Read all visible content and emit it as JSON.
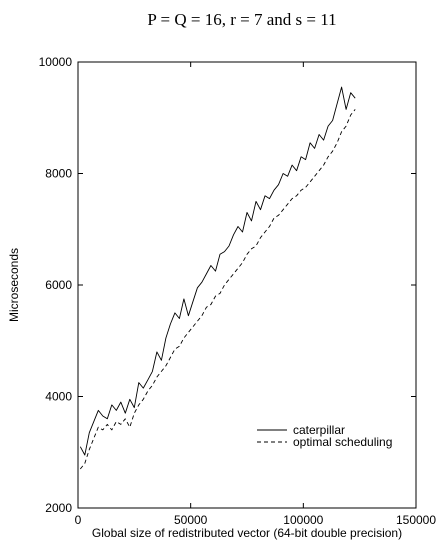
{
  "chart_data": {
    "type": "line",
    "title": "P = Q = 16, r = 7 and s = 11",
    "xlabel": "Global size of redistributed vector (64-bit double precision)",
    "ylabel": "Microseconds",
    "xlim": [
      0,
      150000
    ],
    "ylim": [
      2000,
      10000
    ],
    "x_ticks": [
      "0",
      "50000",
      "100000",
      "150000"
    ],
    "y_ticks": [
      "2000",
      "4000",
      "6000",
      "8000",
      "10000"
    ],
    "grid": false,
    "legend_position": "lower-right",
    "series": [
      {
        "name": "caterpillar",
        "style": "solid",
        "color": "#000000",
        "x": [
          1000,
          3000,
          5000,
          7000,
          9000,
          11000,
          13000,
          15000,
          17000,
          19000,
          21000,
          23000,
          25000,
          27000,
          29000,
          31000,
          33000,
          35000,
          37000,
          39000,
          41000,
          43000,
          45000,
          47000,
          49000,
          51000,
          53000,
          55000,
          57000,
          59000,
          61000,
          63000,
          65000,
          67000,
          69000,
          71000,
          73000,
          75000,
          77000,
          79000,
          81000,
          83000,
          85000,
          87000,
          89000,
          91000,
          93000,
          95000,
          97000,
          99000,
          101000,
          103000,
          105000,
          107000,
          109000,
          111000,
          113000,
          115000,
          117000,
          119000,
          121000,
          123000
        ],
        "values": [
          3100,
          2950,
          3350,
          3550,
          3750,
          3650,
          3600,
          3850,
          3750,
          3900,
          3700,
          3950,
          3800,
          4250,
          4150,
          4300,
          4450,
          4800,
          4650,
          5050,
          5300,
          5500,
          5400,
          5750,
          5450,
          5700,
          5950,
          6050,
          6200,
          6350,
          6250,
          6550,
          6600,
          6700,
          6900,
          7050,
          6950,
          7300,
          7150,
          7500,
          7350,
          7600,
          7550,
          7700,
          7800,
          8000,
          7950,
          8150,
          8050,
          8300,
          8250,
          8550,
          8450,
          8700,
          8600,
          8850,
          8950,
          9250,
          9550,
          9150,
          9450,
          9350
        ]
      },
      {
        "name": "optimal scheduling",
        "style": "dashed",
        "color": "#000000",
        "x": [
          1000,
          3000,
          5000,
          7000,
          9000,
          11000,
          13000,
          15000,
          17000,
          19000,
          21000,
          23000,
          25000,
          27000,
          29000,
          31000,
          33000,
          35000,
          37000,
          39000,
          41000,
          43000,
          45000,
          47000,
          49000,
          51000,
          53000,
          55000,
          57000,
          59000,
          61000,
          63000,
          65000,
          67000,
          69000,
          71000,
          73000,
          75000,
          77000,
          79000,
          81000,
          83000,
          85000,
          87000,
          89000,
          91000,
          93000,
          95000,
          97000,
          99000,
          101000,
          103000,
          105000,
          107000,
          109000,
          111000,
          113000,
          115000,
          117000,
          119000,
          121000,
          123000
        ],
        "values": [
          2700,
          2800,
          3050,
          3250,
          3450,
          3400,
          3500,
          3400,
          3550,
          3500,
          3600,
          3450,
          3700,
          3850,
          3950,
          4100,
          4200,
          4350,
          4450,
          4550,
          4700,
          4850,
          4900,
          5050,
          5150,
          5250,
          5350,
          5450,
          5600,
          5650,
          5800,
          5850,
          6000,
          6100,
          6200,
          6300,
          6400,
          6550,
          6650,
          6700,
          6850,
          6950,
          7050,
          7200,
          7250,
          7350,
          7450,
          7550,
          7600,
          7700,
          7750,
          7850,
          7950,
          8050,
          8150,
          8300,
          8400,
          8550,
          8750,
          8850,
          9050,
          9150
        ]
      }
    ]
  }
}
